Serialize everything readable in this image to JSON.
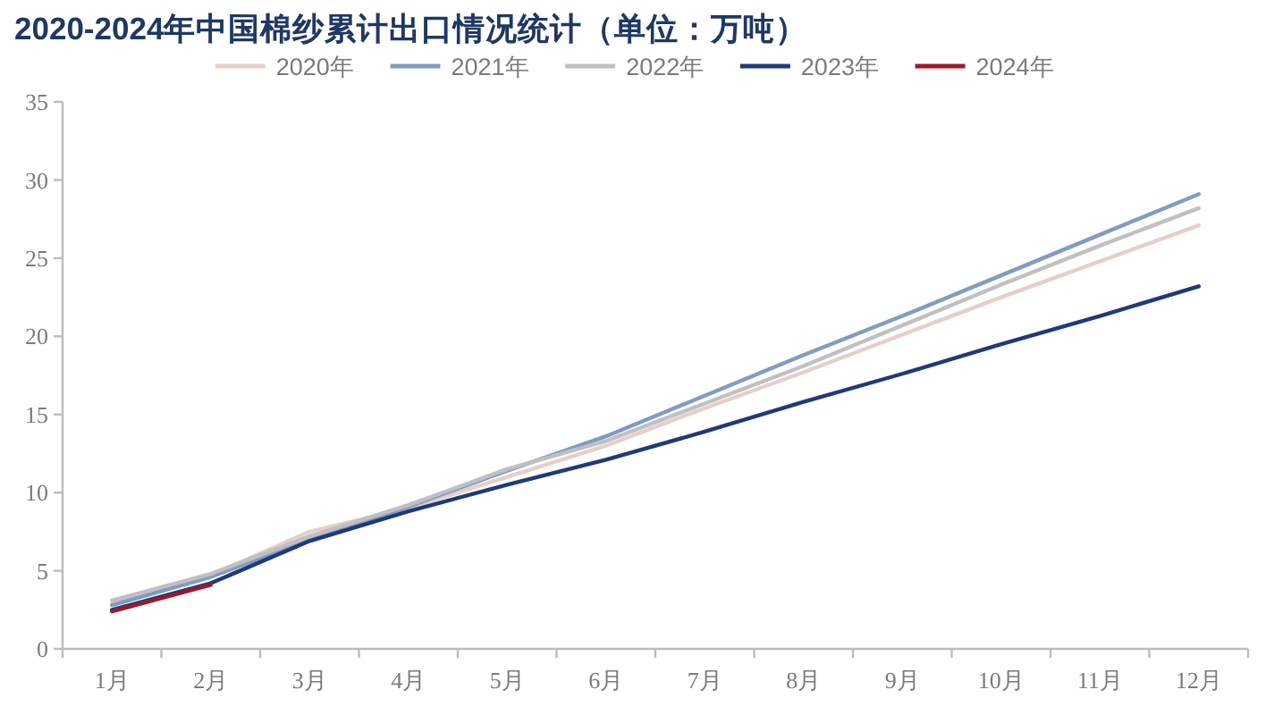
{
  "chart_data": {
    "type": "line",
    "title": "2020-2024年中国棉纱累计出口情况统计（单位：万吨）",
    "categories": [
      "1月",
      "2月",
      "3月",
      "4月",
      "5月",
      "6月",
      "7月",
      "8月",
      "9月",
      "10月",
      "11月",
      "12月"
    ],
    "series": [
      {
        "name": "2020年",
        "color": "#e6cfc9",
        "values": [
          2.9,
          4.7,
          7.5,
          9.0,
          11.0,
          13.0,
          15.4,
          17.7,
          20.1,
          22.5,
          24.8,
          27.1
        ]
      },
      {
        "name": "2021年",
        "color": "#7f9cc2",
        "values": [
          2.8,
          4.6,
          7.0,
          9.1,
          11.4,
          13.6,
          16.2,
          18.8,
          21.3,
          23.9,
          26.5,
          29.1
        ]
      },
      {
        "name": "2022年",
        "color": "#bfbfc4",
        "values": [
          3.1,
          4.8,
          7.2,
          9.2,
          11.5,
          13.3,
          15.7,
          18.1,
          20.7,
          23.3,
          25.8,
          28.2
        ]
      },
      {
        "name": "2023年",
        "color": "#1f3a78",
        "values": [
          2.5,
          4.2,
          6.9,
          8.8,
          10.5,
          12.1,
          13.9,
          15.8,
          17.6,
          19.5,
          21.3,
          23.2
        ]
      },
      {
        "name": "2024年",
        "color": "#a01828",
        "values": [
          2.4,
          4.1,
          null,
          null,
          null,
          null,
          null,
          null,
          null,
          null,
          null,
          null
        ]
      }
    ],
    "ylim": [
      0,
      35
    ],
    "yticks": [
      0,
      5,
      10,
      15,
      20,
      25,
      30,
      35
    ],
    "legend": "top",
    "line_style": "solid"
  }
}
